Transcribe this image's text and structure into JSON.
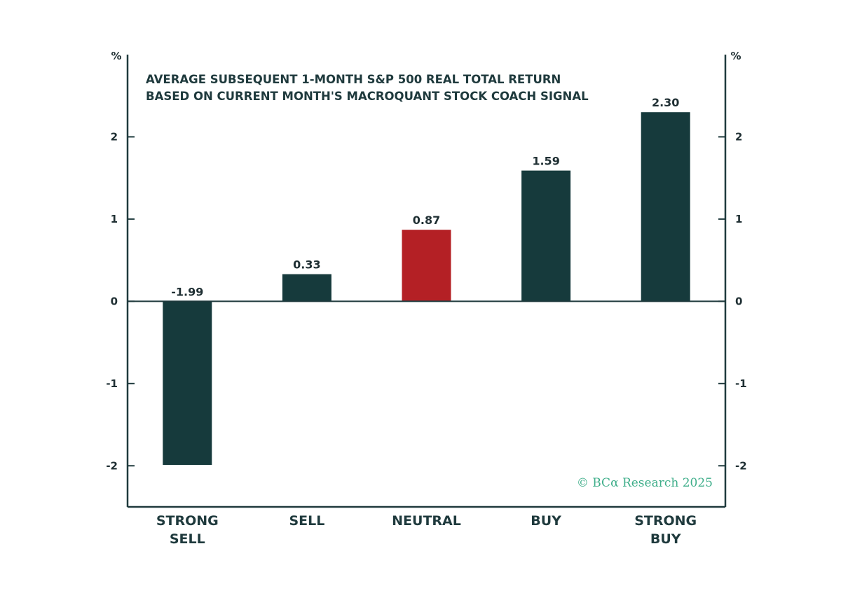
{
  "chart_data": {
    "type": "bar",
    "title": "AVERAGE SUBSEQUENT 1-MONTH S&P 500 REAL TOTAL RETURN",
    "subtitle": "BASED ON CURRENT MONTH'S MACROQUANT STOCK COACH SIGNAL",
    "ylabel_left": "%",
    "ylabel_right": "%",
    "categories": [
      [
        "STRONG",
        "SELL"
      ],
      [
        "SELL"
      ],
      [
        "NEUTRAL"
      ],
      [
        "BUY"
      ],
      [
        "STRONG",
        "BUY"
      ]
    ],
    "values": [
      -1.99,
      0.33,
      0.87,
      1.59,
      2.3
    ],
    "data_labels": [
      "-1.99",
      "0.33",
      "0.87",
      "1.59",
      "2.30"
    ],
    "ylim": [
      -2.5,
      3.0
    ],
    "yticks": [
      -2,
      -1,
      0,
      1,
      2
    ],
    "grid": false,
    "colors": {
      "bar": "#163a3c",
      "highlight": "#b42025",
      "axis": "#1f3a3d",
      "watermark": "#3fae8a"
    },
    "highlight_index": 2,
    "watermark": "© BCα Research 2025"
  }
}
